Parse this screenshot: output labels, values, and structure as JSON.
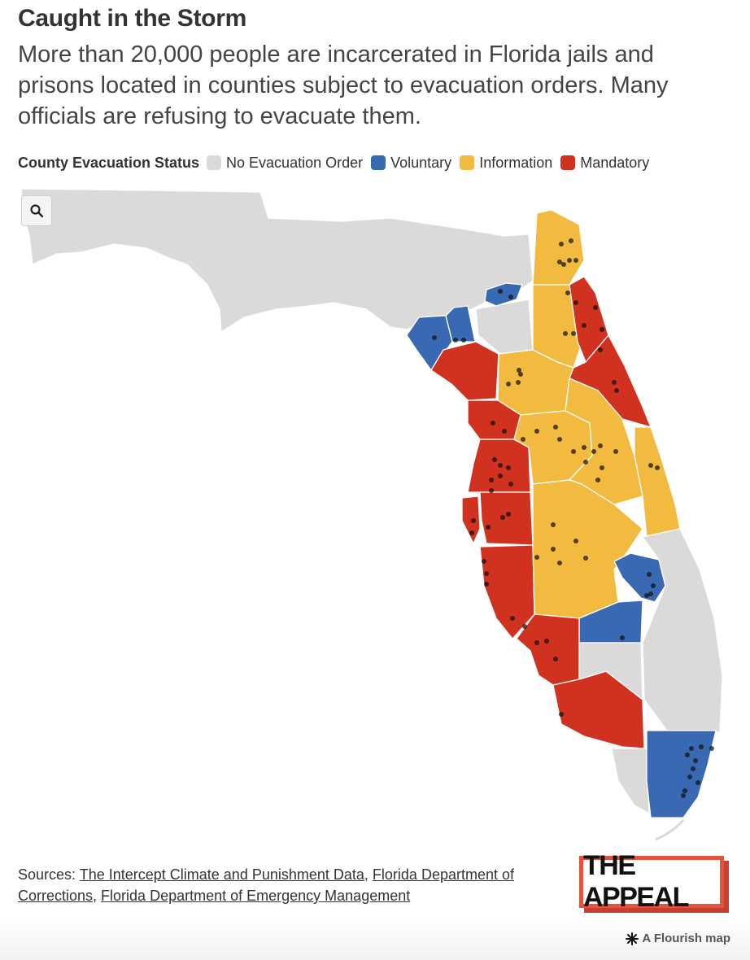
{
  "header": {
    "title": "Caught in the Storm",
    "subtitle": "More than 20,000 people are incarcerated in Florida jails and prisons located in counties subject to evacuation orders. Many officials are refusing to evacuate them."
  },
  "legend": {
    "title": "County Evacuation Status",
    "items": [
      {
        "label": "No Evacuation Order",
        "color": "#dcd9d9"
      },
      {
        "label": "Voluntary",
        "color": "#3a69b3"
      },
      {
        "label": "Information",
        "color": "#f2ba3f"
      },
      {
        "label": "Mandatory",
        "color": "#d1311f"
      }
    ]
  },
  "map_controls": {
    "zoom_icon": "search-icon"
  },
  "sources": {
    "prefix": "Sources: ",
    "links": [
      "The Intercept Climate and Punishment Data",
      "Florida Department of Corrections",
      "Florida Department of Emergency Management"
    ]
  },
  "logo": {
    "text": "THE APPEAL"
  },
  "footer": {
    "credit": "A Flourish map",
    "icon": "flourish-asterisk-icon"
  },
  "colors": {
    "none": "#dcd9d9",
    "voluntary": "#3a69b3",
    "information": "#f2ba3f",
    "mandatory": "#d1311f",
    "border": "#ffffff",
    "dot": "#111111"
  }
}
